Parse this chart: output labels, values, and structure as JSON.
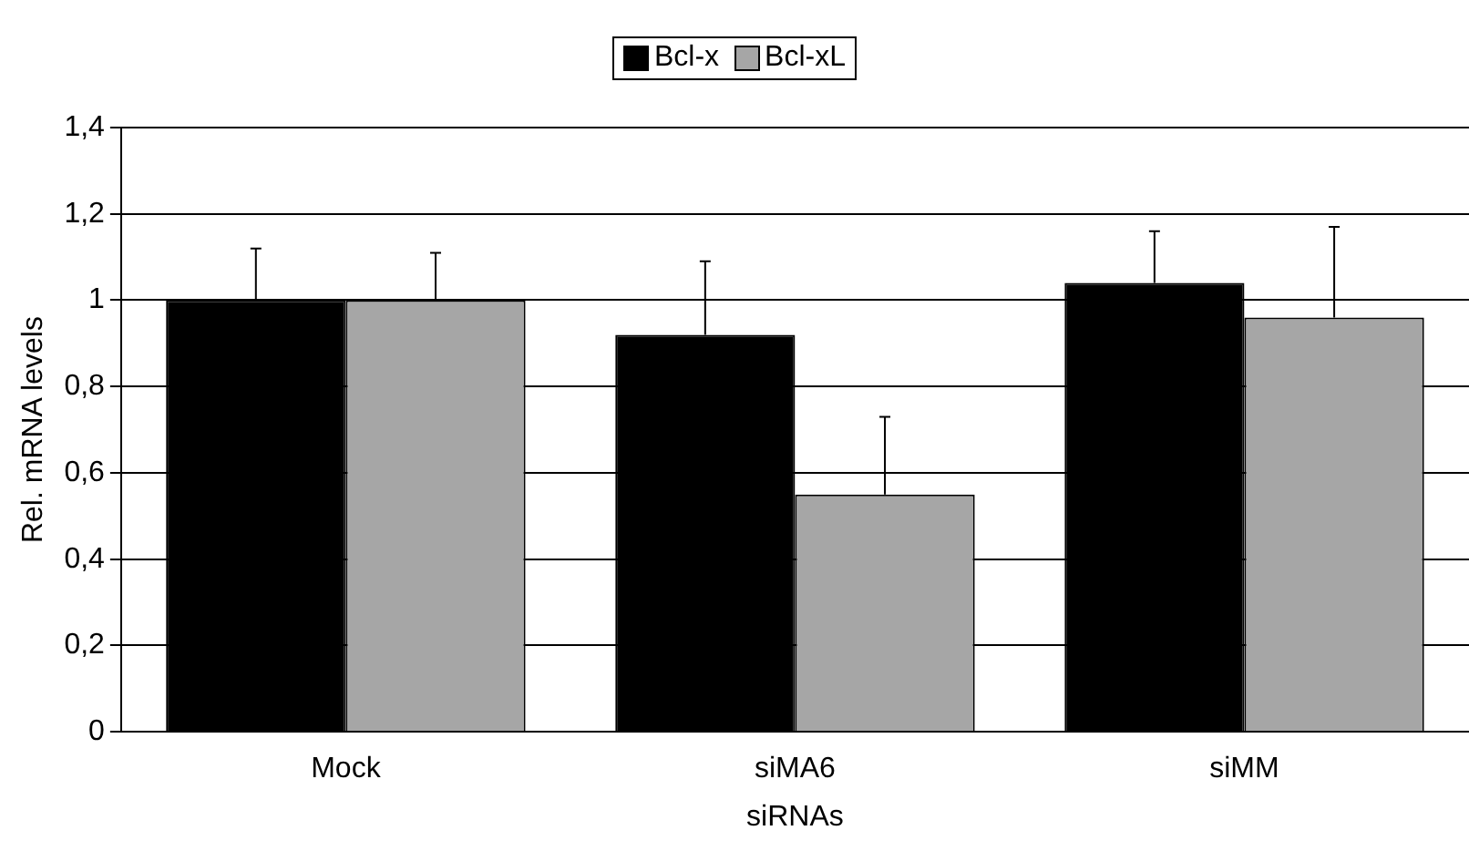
{
  "chart_data": {
    "type": "bar",
    "xlabel": "siRNAs",
    "ylabel": "Rel. mRNA levels",
    "categories": [
      "Mock",
      "siMA6",
      "siMM"
    ],
    "series": [
      {
        "name": "Bcl-x",
        "color": "#000000",
        "values": [
          1.0,
          0.92,
          1.04
        ],
        "errors": [
          [
            1.0,
            1.12
          ],
          [
            0.92,
            1.09
          ],
          [
            1.04,
            1.16
          ]
        ]
      },
      {
        "name": "Bcl-xL",
        "color": "#a6a6a6",
        "values": [
          1.0,
          0.55,
          0.96
        ],
        "errors": [
          [
            1.0,
            1.11
          ],
          [
            0.55,
            0.73
          ],
          [
            0.96,
            1.17
          ]
        ]
      }
    ],
    "ylim": [
      0,
      1.4
    ],
    "yticks": [
      {
        "value": 0,
        "label": "0"
      },
      {
        "value": 0.2,
        "label": "0,2"
      },
      {
        "value": 0.4,
        "label": "0,4"
      },
      {
        "value": 0.6,
        "label": "0,6"
      },
      {
        "value": 0.8,
        "label": "0,8"
      },
      {
        "value": 1,
        "label": "1"
      },
      {
        "value": 1.2,
        "label": "1,2"
      },
      {
        "value": 1.4,
        "label": "1,4"
      }
    ],
    "grid": "y",
    "legend": "top"
  }
}
